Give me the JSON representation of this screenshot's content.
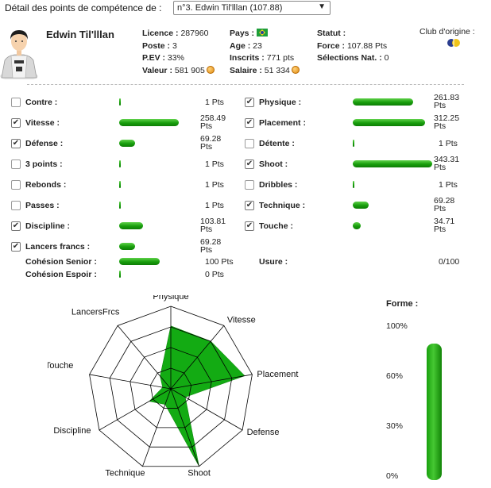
{
  "header": {
    "label": "Détail des points de compétence de :",
    "select_value": "n°3. Edwin Til'lllan (107.88)"
  },
  "player": {
    "name": "Edwin Til'lllan",
    "licence_label": "Licence :",
    "licence": "287960",
    "poste_label": "Poste :",
    "poste": "3",
    "pev_label": "P.EV :",
    "pev": "33%",
    "valeur_label": "Valeur :",
    "valeur": "581 905",
    "pays_label": "Pays :",
    "age_label": "Age :",
    "age": "23",
    "inscrits_label": "Inscrits :",
    "inscrits": "771 pts",
    "salaire_label": "Salaire :",
    "salaire": "51 334",
    "statut_label": "Statut :",
    "force_label": "Force :",
    "force": "107.88 Pts",
    "selections_label": "Sélections Nat. :",
    "selections": "0",
    "club_label": "Club d'origine :"
  },
  "skills_left": [
    {
      "label": "Contre :",
      "checked": false,
      "value": 1,
      "pts": "1 Pts"
    },
    {
      "label": "Vitesse :",
      "checked": true,
      "value": 258.49,
      "pts": "258.49 Pts"
    },
    {
      "label": "Défense :",
      "checked": true,
      "value": 69.28,
      "pts": "69.28 Pts"
    },
    {
      "label": "3 points :",
      "checked": false,
      "value": 1,
      "pts": "1 Pts"
    },
    {
      "label": "Rebonds :",
      "checked": false,
      "value": 1,
      "pts": "1 Pts"
    },
    {
      "label": "Passes :",
      "checked": false,
      "value": 1,
      "pts": "1 Pts"
    },
    {
      "label": "Discipline :",
      "checked": true,
      "value": 103.81,
      "pts": "103.81 Pts"
    },
    {
      "label": "Lancers francs :",
      "checked": true,
      "value": 69.28,
      "pts": "69.28 Pts"
    }
  ],
  "skills_right": [
    {
      "label": "Physique :",
      "checked": true,
      "value": 261.83,
      "pts": "261.83 Pts"
    },
    {
      "label": "Placement :",
      "checked": true,
      "value": 312.25,
      "pts": "312.25 Pts"
    },
    {
      "label": "Détente :",
      "checked": false,
      "value": 1,
      "pts": "1 Pts"
    },
    {
      "label": "Shoot :",
      "checked": true,
      "value": 343.31,
      "pts": "343.31 Pts"
    },
    {
      "label": "Dribbles :",
      "checked": false,
      "value": 1,
      "pts": "1 Pts"
    },
    {
      "label": "Technique :",
      "checked": true,
      "value": 69.28,
      "pts": "69.28 Pts"
    },
    {
      "label": "Touche :",
      "checked": true,
      "value": 34.71,
      "pts": "34.71 Pts"
    }
  ],
  "cohesion_senior": {
    "label": "Cohésion Senior :",
    "value": 100,
    "pts": "100 Pts"
  },
  "cohesion_espoir": {
    "label": "Cohésion Espoir :",
    "value": 0,
    "pts": "0 Pts"
  },
  "usure": {
    "label": "Usure :",
    "value": "0/100"
  },
  "radar": {
    "axes": [
      "Physique",
      "Vitesse",
      "Placement",
      "Defense",
      "Shoot",
      "Technique",
      "Discipline",
      "Touche",
      "LancersFrcs"
    ],
    "values": [
      261.83,
      258.49,
      312.25,
      69.28,
      343.31,
      69.28,
      103.81,
      34.71,
      69.28
    ],
    "max": 343.31
  },
  "forme": {
    "label": "Forme :",
    "ticks": [
      "100%",
      "60%",
      "30%",
      "0%"
    ],
    "level_fraction": 0.88
  },
  "colors": {
    "bar_green": "#179d0c",
    "radar_fill": "#13ab13"
  }
}
